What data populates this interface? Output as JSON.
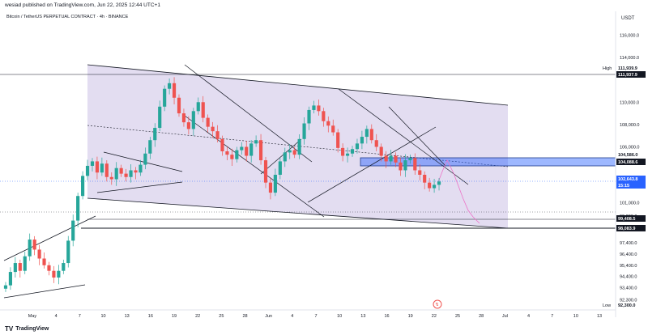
{
  "header": {
    "publisher_line": "wesiad published on TradingView.com, Jun 22, 2025 12:44 UTC+1"
  },
  "footer": {
    "brand": "TradingView",
    "logo_icon": "tradingview-logo-icon"
  },
  "chart_data": {
    "type": "candlestick",
    "title": "Bitcoin / TetherUS PERPETUAL CONTRACT · 4h · BINANCE",
    "currency": "USDT",
    "ylim": [
      91400,
      117700
    ],
    "y_ticks": [
      116000.0,
      114000.0,
      110000.0,
      108000.0,
      106000.0,
      101000.0,
      99800.0,
      97400.0,
      96400.0,
      95400.0,
      94400.0,
      93400.0,
      92300.0
    ],
    "x_tick_labels": [
      "May",
      "4",
      "7",
      "10",
      "13",
      "16",
      "19",
      "22",
      "25",
      "28",
      "Jun",
      "4",
      "7",
      "10",
      "13",
      "16",
      "19",
      "22",
      "25",
      "28",
      "Jul",
      "4",
      "7",
      "10",
      "13"
    ],
    "price_labels": [
      {
        "name": "High",
        "value": "111,939.9",
        "color": "#ffffff",
        "text_color": "#131722"
      },
      {
        "name": "",
        "value": "111,937.9",
        "color": "#131722",
        "text_color": "#ffffff"
      },
      {
        "name": "",
        "value": "104,586.0",
        "color": "#ffffff",
        "text_color": "#131722"
      },
      {
        "name": "",
        "value": "104,088.6",
        "color": "#131722",
        "text_color": "#ffffff"
      },
      {
        "name": "",
        "value": "102,643.8",
        "color": "#2962ff",
        "text_color": "#ffffff"
      },
      {
        "name": "",
        "value": "15:15",
        "color": "#2962ff",
        "text_color": "#ffffff"
      },
      {
        "name": "",
        "value": "99,408.5",
        "color": "#131722",
        "text_color": "#ffffff"
      },
      {
        "name": "",
        "value": "98,083.9",
        "color": "#131722",
        "text_color": "#ffffff"
      },
      {
        "name": "Low",
        "value": "92,300.0",
        "color": "#ffffff",
        "text_color": "#131722"
      }
    ],
    "colors": {
      "up": "#26a69a",
      "down": "#ef5350",
      "channel_fill": "#d1c4e9",
      "zone": "#2962ff",
      "projection": "#ec73c8"
    },
    "series": [
      {
        "name": "closes",
        "values": [
          93600,
          94800,
          95600,
          94900,
          96200,
          97700,
          96800,
          96000,
          95400,
          94900,
          94300,
          94900,
          95600,
          97600,
          99400,
          101600,
          103400,
          104300,
          104700,
          103700,
          104500,
          103300,
          103100,
          104100,
          103600,
          103300,
          103900,
          103700,
          104400,
          105400,
          106600,
          107700,
          109600,
          111200,
          111700,
          110400,
          109000,
          108200,
          107600,
          109200,
          110000,
          108600,
          107800,
          107400,
          106700,
          105600,
          105300,
          104900,
          105700,
          106000,
          105200,
          106300,
          106600,
          104800,
          102800,
          101900,
          103500,
          104700,
          105500,
          105700,
          105300,
          106700,
          108100,
          109300,
          109700,
          109200,
          108300,
          107900,
          107300,
          105900,
          105200,
          105400,
          105800,
          106300,
          106900,
          107600,
          106600,
          106000,
          105200,
          104700,
          105200,
          104600,
          103900,
          104800,
          105000,
          103900,
          103500,
          102800,
          102300,
          102600,
          102900
        ]
      }
    ]
  }
}
